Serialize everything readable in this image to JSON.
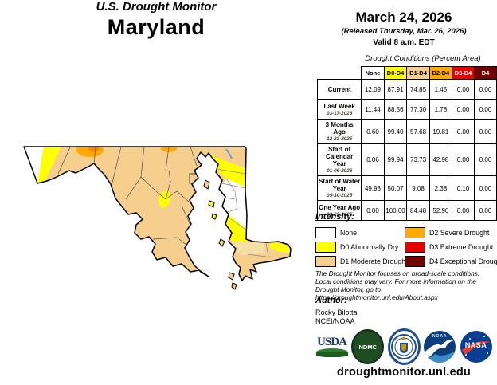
{
  "header": {
    "site_title": "U.S. Drought Monitor",
    "state": "Maryland"
  },
  "release": {
    "date": "March 24, 2026",
    "released": "(Released Thursday, Mar. 26, 2026)",
    "valid": "Valid 8 a.m. EDT"
  },
  "table": {
    "caption": "Drought Conditions (Percent Area)",
    "columns": [
      {
        "label": "None",
        "bg": "#FFFFFF",
        "fg": "#000000"
      },
      {
        "label": "D0-D4",
        "bg": "#FFFF00",
        "fg": "#000000"
      },
      {
        "label": "D1-D4",
        "bg": "#F6CF8E",
        "fg": "#000000"
      },
      {
        "label": "D2-D4",
        "bg": "#FFAA00",
        "fg": "#000000"
      },
      {
        "label": "D3-D4",
        "bg": "#E60000",
        "fg": "#FFFFFF"
      },
      {
        "label": "D4",
        "bg": "#730000",
        "fg": "#FFFFFF"
      }
    ],
    "rows": [
      {
        "label": "Current",
        "date": "",
        "values": [
          "12.09",
          "87.91",
          "74.85",
          "1.45",
          "0.00",
          "0.00"
        ]
      },
      {
        "label": "Last Week",
        "date": "03-17-2026",
        "values": [
          "11.44",
          "88.56",
          "77.30",
          "1.78",
          "0.00",
          "0.00"
        ]
      },
      {
        "label": "3 Months Ago",
        "date": "12-23-2025",
        "values": [
          "0.60",
          "99.40",
          "57.68",
          "19.81",
          "0.00",
          "0.00"
        ]
      },
      {
        "label": "Start of Calendar Year",
        "date": "01-06-2026",
        "values": [
          "0.06",
          "99.94",
          "73.73",
          "42.98",
          "0.00",
          "0.00"
        ]
      },
      {
        "label": "Start of Water Year",
        "date": "09-30-2025",
        "values": [
          "49.93",
          "50.07",
          "9.08",
          "2.38",
          "0.10",
          "0.00"
        ]
      },
      {
        "label": "One Year Ago",
        "date": "03-25-2025",
        "values": [
          "0.00",
          "100.00",
          "84.48",
          "52.90",
          "0.00",
          "0.00"
        ]
      }
    ]
  },
  "legend": {
    "heading": "Intensity:",
    "items": [
      {
        "label": "None",
        "color": "#FFFFFF"
      },
      {
        "label": "D0 Abnormally Dry",
        "color": "#FFFF00"
      },
      {
        "label": "D1 Moderate Drought",
        "color": "#F6CF8E"
      },
      {
        "label": "D2 Severe Drought",
        "color": "#FFAA00"
      },
      {
        "label": "D3 Extreme Drought",
        "color": "#E60000"
      },
      {
        "label": "D4 Exceptional Drought",
        "color": "#730000"
      }
    ]
  },
  "disclaimer_lines": [
    "The Drought Monitor focuses on broad-scale conditions.",
    "Local conditions may vary. For more information on the",
    "Drought Monitor, go to https://droughtmonitor.unl.edu/About.aspx"
  ],
  "author": {
    "heading": "Author:",
    "name": "Rocky Bilotta",
    "org": "NCEI/NOAA"
  },
  "logos": {
    "usda": "USDA",
    "ndmc": "NDMC",
    "noaa": "NOAA",
    "nasa": "NASA"
  },
  "footer_url": "droughtmonitor.unl.edu",
  "colors": {
    "none": "#FFFFFF",
    "d0": "#FFFF00",
    "d1": "#F6CF8E",
    "d1_light": "#F7DFA8",
    "d2": "#FFAA00",
    "d2_core": "#F08C00",
    "d3": "#E60000",
    "d4": "#730000",
    "river": "#55A0E0",
    "county_line": "#4d4d4d",
    "county_line_light": "#8a8a8a",
    "state_border": "#000000"
  }
}
